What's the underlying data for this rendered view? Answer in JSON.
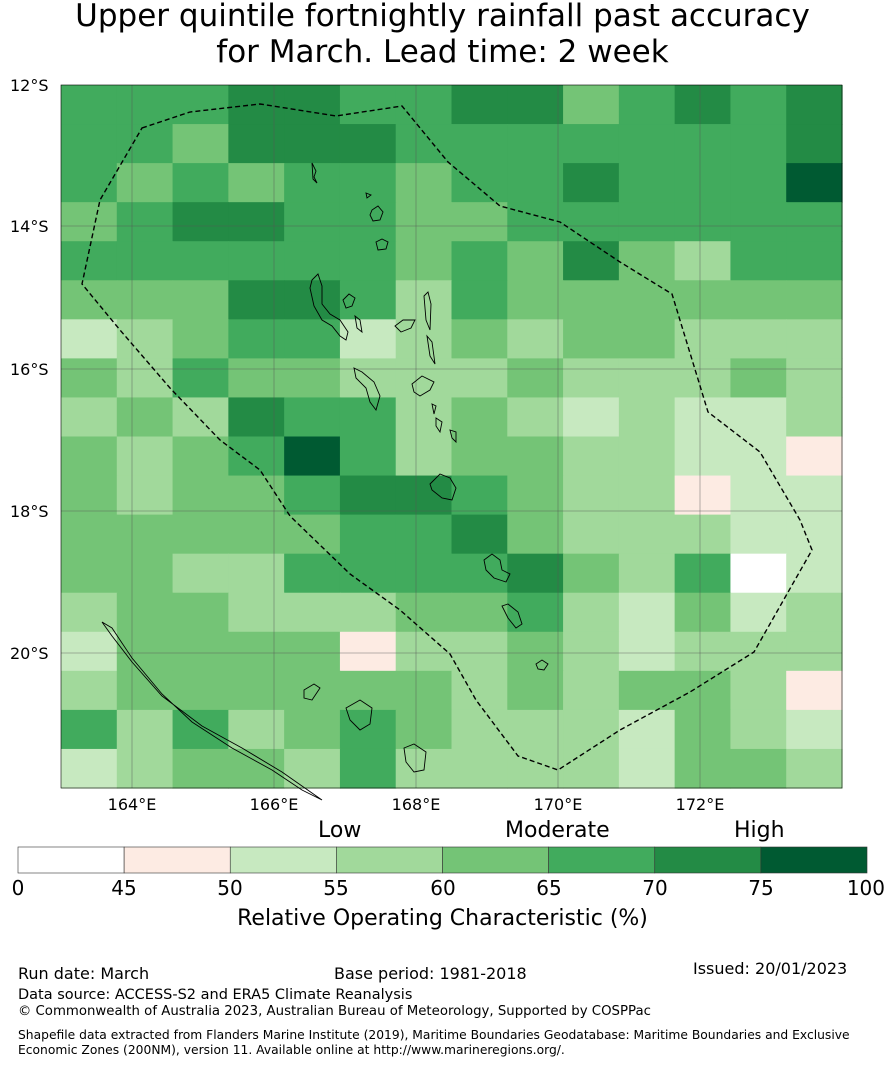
{
  "title_line1": "Upper quintile fortnightly rainfall past accuracy",
  "title_line2": "for March. Lead time: 2 week",
  "map": {
    "lon_ticks": [
      "164°E",
      "166°E",
      "168°E",
      "170°E",
      "172°E"
    ],
    "lat_ticks": [
      "12°S",
      "14°S",
      "16°S",
      "18°S",
      "20°S"
    ],
    "cols": 14,
    "rows": 18,
    "grid_roc_class": [
      [
        5,
        5,
        5,
        6,
        6,
        5,
        5,
        6,
        6,
        4,
        5,
        6,
        5,
        6
      ],
      [
        5,
        5,
        4,
        6,
        6,
        6,
        5,
        5,
        5,
        5,
        5,
        5,
        5,
        6
      ],
      [
        5,
        4,
        5,
        4,
        5,
        5,
        4,
        5,
        5,
        6,
        5,
        5,
        5,
        7
      ],
      [
        4,
        5,
        6,
        6,
        5,
        5,
        4,
        4,
        5,
        5,
        5,
        5,
        5,
        5
      ],
      [
        5,
        5,
        5,
        5,
        5,
        5,
        4,
        5,
        4,
        6,
        4,
        3,
        5,
        5
      ],
      [
        4,
        4,
        4,
        6,
        6,
        5,
        3,
        5,
        4,
        4,
        4,
        4,
        4,
        4
      ],
      [
        2,
        3,
        4,
        5,
        5,
        2,
        3,
        4,
        3,
        4,
        4,
        3,
        3,
        3
      ],
      [
        4,
        3,
        5,
        4,
        4,
        3,
        3,
        3,
        4,
        3,
        3,
        3,
        4,
        3
      ],
      [
        3,
        4,
        3,
        6,
        5,
        5,
        3,
        4,
        3,
        2,
        3,
        2,
        2,
        3
      ],
      [
        4,
        3,
        4,
        5,
        7,
        5,
        3,
        4,
        4,
        3,
        3,
        2,
        2,
        1
      ],
      [
        4,
        3,
        4,
        4,
        5,
        6,
        6,
        5,
        4,
        3,
        3,
        1,
        2,
        2
      ],
      [
        4,
        4,
        4,
        4,
        4,
        5,
        5,
        6,
        4,
        3,
        3,
        3,
        2,
        2
      ],
      [
        4,
        4,
        3,
        3,
        5,
        5,
        5,
        5,
        6,
        4,
        3,
        5,
        0,
        2
      ],
      [
        3,
        4,
        4,
        3,
        3,
        3,
        4,
        4,
        5,
        3,
        2,
        4,
        2,
        3
      ],
      [
        2,
        4,
        4,
        4,
        4,
        1,
        3,
        3,
        4,
        3,
        2,
        3,
        3,
        3
      ],
      [
        3,
        4,
        4,
        4,
        4,
        4,
        4,
        3,
        4,
        3,
        4,
        4,
        3,
        1
      ],
      [
        5,
        3,
        5,
        3,
        4,
        5,
        4,
        3,
        3,
        3,
        2,
        4,
        3,
        2
      ],
      [
        2,
        3,
        4,
        4,
        3,
        5,
        3,
        3,
        3,
        3,
        2,
        4,
        4,
        3
      ]
    ],
    "grid_roc_class_note": ""
  },
  "legend": {
    "categories": [
      "Low",
      "Moderate",
      "High"
    ],
    "ticks": [
      "0",
      "45",
      "50",
      "55",
      "60",
      "65",
      "70",
      "75",
      "100"
    ],
    "colors": [
      "#ffffff",
      "#fdebe3",
      "#c7e9c0",
      "#a1d99b",
      "#74c476",
      "#41ab5d",
      "#238b45",
      "#005a32"
    ],
    "title": "Relative Operating Characteristic (%)"
  },
  "footer": {
    "run_date": "Run date: March",
    "base_period": "Base period: 1981-2018",
    "issued": "Issued: 20/01/2023",
    "data_source": "Data source: ACCESS-S2 and ERA5 Climate Reanalysis",
    "copyright": "© Commonwealth of Australia 2023, Australian Bureau of Meteorology, Supported by COSPPac",
    "shapefile_line1": "Shapefile data extracted from Flanders Marine Institute (2019), Maritime Boundaries Geodatabase: Maritime Boundaries and Exclusive",
    "shapefile_line2": "Economic Zones (200NM), version 11. Available online at http://www.marineregions.org/."
  }
}
